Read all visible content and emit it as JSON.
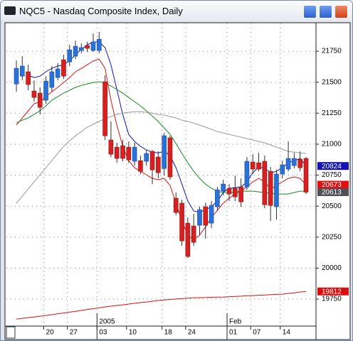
{
  "window": {
    "title": "NQC5 - Nasdaq Composite Index, Daily"
  },
  "chart_data": {
    "type": "candlestick",
    "categories": [
      null,
      null,
      null,
      null,
      null,
      "20",
      null,
      null,
      null,
      "27",
      null,
      null,
      null,
      null,
      "03",
      null,
      null,
      null,
      null,
      "10",
      null,
      null,
      null,
      null,
      null,
      "18",
      null,
      null,
      null,
      "24",
      null,
      null,
      null,
      null,
      null,
      null,
      "01",
      null,
      null,
      null,
      "07",
      null,
      null,
      null,
      null,
      "14",
      null,
      null,
      null,
      null
    ],
    "periods": [
      null,
      null,
      null,
      null,
      null,
      null,
      null,
      null,
      null,
      null,
      null,
      null,
      null,
      null,
      "2005",
      null,
      null,
      null,
      null,
      null,
      null,
      null,
      null,
      null,
      null,
      null,
      null,
      null,
      null,
      null,
      null,
      null,
      null,
      null,
      null,
      null,
      "Feb",
      null,
      null,
      null,
      null,
      null,
      null,
      null,
      null,
      null,
      null,
      null,
      null,
      null
    ],
    "open": [
      21486,
      21549,
      21584,
      21429,
      21412,
      21355,
      21458,
      21538,
      21681,
      21664,
      21710,
      21756,
      21796,
      21756,
      21756,
      21504,
      21034,
      20976,
      20988,
      20976,
      20862,
      20867,
      20862,
      20942,
      20896,
      20804,
      21051,
      20564,
      20524,
      20363,
      20340,
      20346,
      20495,
      20363,
      20495,
      20621,
      20644,
      20644,
      20655,
      20655,
      20856,
      20850,
      20862,
      20781,
      20495,
      20759,
      20799,
      20827,
      20879,
      20885
    ],
    "high": [
      21675,
      21710,
      21641,
      21515,
      21458,
      21549,
      21630,
      21653,
      21721,
      21802,
      21836,
      21813,
      21825,
      21893,
      21905,
      21555,
      21183,
      21011,
      21034,
      21022,
      21011,
      20908,
      20953,
      20953,
      20942,
      21091,
      21068,
      20610,
      20552,
      20409,
      20438,
      20495,
      20529,
      20541,
      20655,
      20713,
      20678,
      20747,
      20724,
      20896,
      20919,
      20930,
      20908,
      20816,
      20793,
      20867,
      21022,
      20930,
      20942,
      20896
    ],
    "low": [
      21423,
      21515,
      21435,
      21343,
      21240,
      21326,
      21423,
      21515,
      21526,
      21630,
      21687,
      21733,
      21744,
      21744,
      21733,
      21034,
      20896,
      20850,
      20862,
      20850,
      20827,
      20759,
      20827,
      20678,
      20724,
      20747,
      20713,
      20426,
      20180,
      20082,
      20180,
      20266,
      20237,
      20323,
      20461,
      20587,
      20541,
      20541,
      20495,
      20632,
      20759,
      20781,
      20483,
      20380,
      20392,
      20724,
      20781,
      20804,
      20781,
      20598
    ],
    "close": [
      21612,
      21630,
      21481,
      21377,
      21297,
      21509,
      21584,
      21607,
      21549,
      21761,
      21790,
      21779,
      21773,
      21825,
      21847,
      21068,
      20919,
      20885,
      20885,
      20873,
      20976,
      20781,
      20925,
      20793,
      20770,
      21068,
      20736,
      20449,
      20220,
      20094,
      20208,
      20472,
      20346,
      20506,
      20632,
      20678,
      20598,
      20575,
      20535,
      20862,
      20799,
      20799,
      20512,
      20506,
      20759,
      20833,
      20885,
      20885,
      20810,
      20613
    ],
    "up_color": "#2a72d8",
    "down_color": "#d82020",
    "last_price_color": "#505058",
    "series": [
      {
        "color": "#1414b4",
        "tag": true,
        "values": [
          null,
          null,
          21555,
          21538,
          21549,
          21584,
          21612,
          21630,
          21641,
          21675,
          21721,
          21767,
          21802,
          21825,
          21825,
          21779,
          21641,
          21441,
          21240,
          21079,
          21022,
          20982,
          20953,
          20936,
          20930,
          20942,
          20908,
          20810,
          20678,
          20541,
          20461,
          20449,
          20472,
          20495,
          20541,
          20610,
          20644,
          20650,
          20655,
          20696,
          20770,
          20816,
          20804,
          20770,
          20781,
          20810,
          20850,
          20867,
          20885,
          20824
        ]
      },
      {
        "color": "#e01010",
        "tag": true,
        "values": [
          21154,
          21211,
          21269,
          21326,
          21343,
          21383,
          21423,
          21458,
          21498,
          21538,
          21584,
          21612,
          21641,
          21670,
          21687,
          21612,
          21355,
          21154,
          20982,
          20867,
          20810,
          20781,
          20753,
          20724,
          20713,
          20724,
          20667,
          20524,
          20380,
          20266,
          20231,
          20266,
          20334,
          20409,
          20466,
          20524,
          20564,
          20598,
          20621,
          20655,
          20696,
          20724,
          20696,
          20638,
          20667,
          20696,
          20724,
          20736,
          20724,
          20673
        ]
      },
      {
        "color": "#1a8a1a",
        "tag": false,
        "values": [
          21171,
          21194,
          21211,
          21240,
          21269,
          21309,
          21355,
          21383,
          21412,
          21435,
          21458,
          21475,
          21486,
          21498,
          21504,
          21492,
          21469,
          21441,
          21412,
          21377,
          21343,
          21309,
          21269,
          21228,
          21183,
          21131,
          21079,
          21005,
          20925,
          20850,
          20781,
          20724,
          20678,
          20644,
          20621,
          20610,
          20610,
          20615,
          20621,
          20621,
          20621,
          20615,
          20610,
          20604,
          20598,
          20598,
          20598,
          20610,
          20621,
          20621
        ]
      },
      {
        "color": "#9a9a9a",
        "tag": false,
        "values": [
          20524,
          20581,
          20638,
          20696,
          20753,
          20810,
          20867,
          20925,
          20982,
          21028,
          21068,
          21102,
          21137,
          21160,
          21183,
          21206,
          21223,
          21240,
          21251,
          21257,
          21263,
          21263,
          21257,
          21251,
          21240,
          21234,
          21223,
          21211,
          21194,
          21183,
          21171,
          21154,
          21137,
          21120,
          21102,
          21091,
          21079,
          21068,
          21057,
          21045,
          21034,
          21022,
          21011,
          20994,
          20976,
          20959,
          20942,
          20936,
          20930,
          20925
        ]
      },
      {
        "color": "#d81010",
        "tag": true,
        "values": [
          19589,
          19595,
          19601,
          19606,
          19612,
          19618,
          19625,
          19632,
          19638,
          19645,
          19652,
          19659,
          19666,
          19673,
          19680,
          19687,
          19693,
          19699,
          19704,
          19710,
          19716,
          19722,
          19727,
          19733,
          19738,
          19744,
          19747,
          19751,
          19754,
          19758,
          19761,
          19762,
          19763,
          19765,
          19766,
          19767,
          19769,
          19772,
          19774,
          19777,
          19779,
          19781,
          19783,
          19786,
          19788,
          19790,
          19796,
          19801,
          19807,
          19812
        ]
      }
    ],
    "ylim": [
      19544,
      21974
    ],
    "yticks": [
      19750,
      20000,
      20250,
      20500,
      20750,
      21000,
      21250,
      21500,
      21750
    ],
    "grid": true
  }
}
